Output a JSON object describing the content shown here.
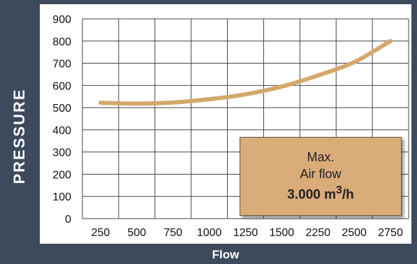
{
  "chart_data": {
    "type": "line",
    "ylabel": "PRESSURE",
    "xlabel": "Flow",
    "categories": [
      "250",
      "500",
      "750",
      "1000",
      "1250",
      "1500",
      "2250",
      "2500",
      "2750"
    ],
    "yticks": [
      "0",
      "100",
      "200",
      "300",
      "400",
      "500",
      "600",
      "700",
      "800",
      "900"
    ],
    "ylim": [
      0,
      900
    ],
    "grid": true,
    "series": [
      {
        "x": [
          250,
          500,
          750,
          1000,
          1250,
          1500,
          2250,
          2500,
          2750
        ],
        "y": [
          522,
          518,
          523,
          538,
          560,
          595,
          645,
          705,
          800
        ],
        "color": "#d4a86c"
      }
    ],
    "annotation": {
      "line1": "Max.",
      "line2": "Air flow",
      "value": "3.000 m",
      "sup": "3",
      "unit": "/h"
    }
  }
}
